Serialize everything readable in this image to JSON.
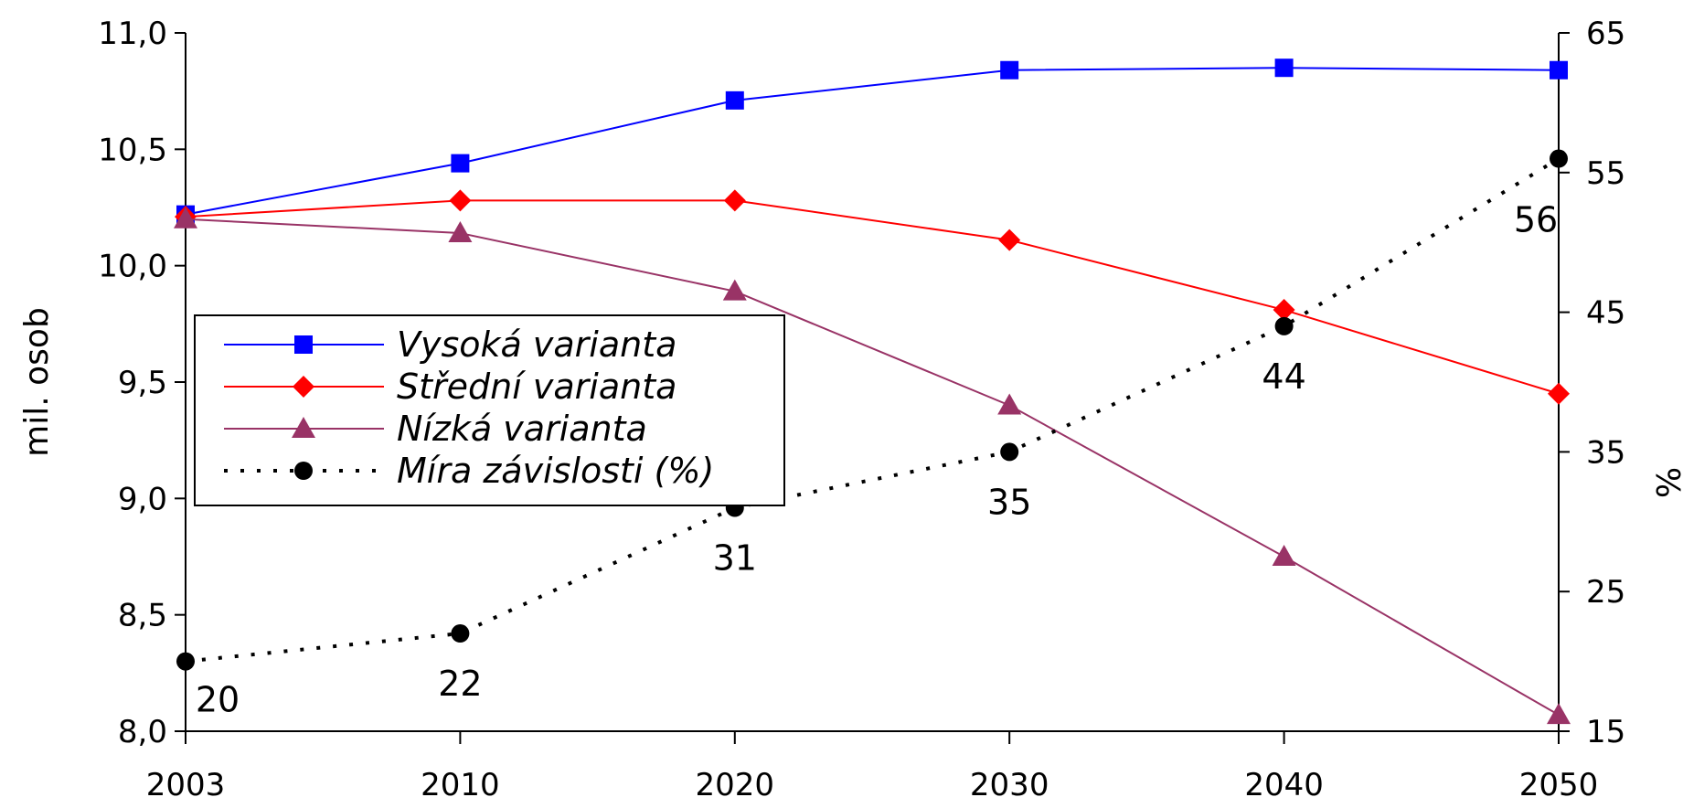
{
  "chart_data": {
    "type": "line",
    "x": [
      "2003",
      "2010",
      "2020",
      "2030",
      "2040",
      "2050"
    ],
    "ylabel": "mil. osob",
    "y2label": "%",
    "ylim": [
      8.0,
      11.0
    ],
    "y2lim": [
      15,
      65
    ],
    "yticks": [
      "8,0",
      "8,5",
      "9,0",
      "9,5",
      "10,0",
      "10,5",
      "11,0"
    ],
    "y2ticks": [
      "15",
      "25",
      "35",
      "45",
      "55",
      "65"
    ],
    "grid": false,
    "legend_position": "left",
    "series": [
      {
        "name": "Vysoká varianta",
        "axis": "left",
        "color": "#0000ff",
        "marker": "square",
        "values": [
          10.22,
          10.44,
          10.71,
          10.84,
          10.85,
          10.84
        ]
      },
      {
        "name": "Střední varianta",
        "axis": "left",
        "color": "#ff0000",
        "marker": "diamond",
        "values": [
          10.21,
          10.28,
          10.28,
          10.11,
          9.81,
          9.45
        ]
      },
      {
        "name": "Nízká varianta",
        "axis": "left",
        "color": "#993366",
        "marker": "triangle",
        "values": [
          10.2,
          10.14,
          9.89,
          9.4,
          8.75,
          8.07
        ]
      },
      {
        "name": "Míra závislosti (%)",
        "axis": "right",
        "color": "#000000",
        "marker": "circle",
        "dashed": true,
        "values": [
          20,
          22,
          31,
          35,
          44,
          56
        ],
        "labels": [
          "20",
          "22",
          "31",
          "35",
          "44",
          "56"
        ]
      }
    ]
  }
}
